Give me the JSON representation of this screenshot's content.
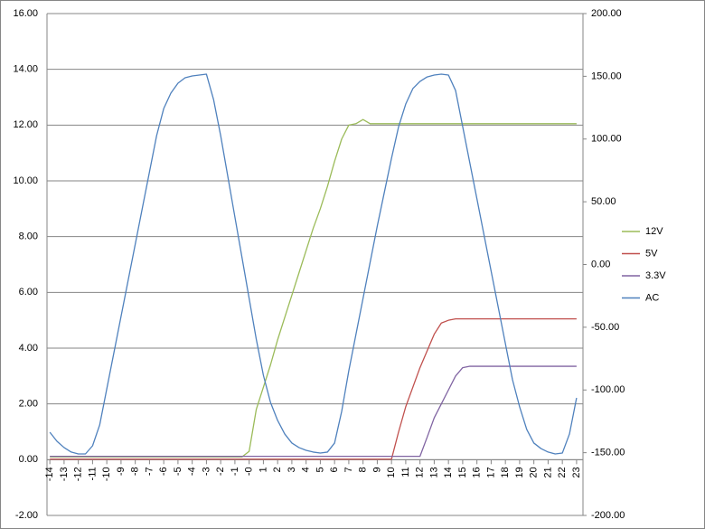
{
  "chart_data": {
    "type": "line",
    "x": [
      -14,
      -13.5,
      -13,
      -12.5,
      -12,
      -11.5,
      -11,
      -10.5,
      -10,
      -9.5,
      -9,
      -8.5,
      -8,
      -7.5,
      -7,
      -6.5,
      -6,
      -5.5,
      -5,
      -4.5,
      -4,
      -3.5,
      -3,
      -2.5,
      -2,
      -1.5,
      -1,
      -0.5,
      0,
      0.5,
      1,
      1.5,
      2,
      2.5,
      3,
      3.5,
      4,
      4.5,
      5,
      5.5,
      6,
      6.5,
      7,
      7.5,
      8,
      8.5,
      9,
      9.5,
      10,
      10.5,
      11,
      11.5,
      12,
      12.5,
      13,
      13.5,
      14,
      14.5,
      15,
      15.5,
      16,
      16.5,
      17,
      17.5,
      18,
      18.5,
      19,
      19.5,
      20,
      20.5,
      21,
      21.5,
      22,
      22.5,
      23
    ],
    "series": [
      {
        "name": "12V",
        "color": "#9bbb59",
        "values": [
          0.1,
          0.1,
          0.1,
          0.1,
          0.1,
          0.1,
          0.1,
          0.1,
          0.1,
          0.1,
          0.1,
          0.1,
          0.1,
          0.1,
          0.1,
          0.1,
          0.1,
          0.1,
          0.1,
          0.1,
          0.1,
          0.1,
          0.1,
          0.1,
          0.1,
          0.1,
          0.1,
          0.1,
          0.3,
          1.8,
          2.6,
          3.4,
          4.3,
          5.1,
          5.9,
          6.7,
          7.5,
          8.3,
          9.0,
          9.8,
          10.7,
          11.5,
          12.0,
          12.05,
          12.2,
          12.05,
          12.05,
          12.05,
          12.05,
          12.05,
          12.05,
          12.05,
          12.05,
          12.05,
          12.05,
          12.05,
          12.05,
          12.05,
          12.05,
          12.05,
          12.05,
          12.05,
          12.05,
          12.05,
          12.05,
          12.05,
          12.05,
          12.05,
          12.05,
          12.05,
          12.05,
          12.05,
          12.05,
          12.05,
          12.05
        ]
      },
      {
        "name": "5V",
        "color": "#c0504d",
        "values": [
          0.02,
          0.02,
          0.02,
          0.02,
          0.02,
          0.02,
          0.02,
          0.02,
          0.02,
          0.02,
          0.02,
          0.02,
          0.02,
          0.02,
          0.02,
          0.02,
          0.02,
          0.02,
          0.02,
          0.02,
          0.02,
          0.02,
          0.02,
          0.02,
          0.02,
          0.02,
          0.02,
          0.02,
          0.02,
          0.02,
          0.02,
          0.02,
          0.02,
          0.02,
          0.02,
          0.02,
          0.02,
          0.02,
          0.02,
          0.02,
          0.02,
          0.02,
          0.02,
          0.02,
          0.02,
          0.02,
          0.02,
          0.02,
          0.02,
          1.0,
          1.9,
          2.6,
          3.3,
          3.9,
          4.5,
          4.9,
          5.0,
          5.05,
          5.05,
          5.05,
          5.05,
          5.05,
          5.05,
          5.05,
          5.05,
          5.05,
          5.05,
          5.05,
          5.05,
          5.05,
          5.05,
          5.05,
          5.05,
          5.05,
          5.05
        ]
      },
      {
        "name": "3.3V",
        "color": "#8064a2",
        "values": [
          0.12,
          0.12,
          0.12,
          0.12,
          0.12,
          0.12,
          0.12,
          0.12,
          0.12,
          0.12,
          0.12,
          0.12,
          0.12,
          0.12,
          0.12,
          0.12,
          0.12,
          0.12,
          0.12,
          0.12,
          0.12,
          0.12,
          0.12,
          0.12,
          0.12,
          0.12,
          0.12,
          0.12,
          0.12,
          0.12,
          0.12,
          0.12,
          0.12,
          0.12,
          0.12,
          0.12,
          0.12,
          0.12,
          0.12,
          0.12,
          0.12,
          0.12,
          0.12,
          0.12,
          0.12,
          0.12,
          0.12,
          0.12,
          0.12,
          0.12,
          0.12,
          0.12,
          0.12,
          0.8,
          1.5,
          2.0,
          2.5,
          3.0,
          3.3,
          3.35,
          3.35,
          3.35,
          3.35,
          3.35,
          3.35,
          3.35,
          3.35,
          3.35,
          3.35,
          3.35,
          3.35,
          3.35,
          3.35,
          3.35,
          3.35
        ]
      },
      {
        "name": "AC",
        "color": "#4f81bd",
        "axis": "y2",
        "values": [
          -133.7,
          -140.9,
          -145.9,
          -149.5,
          -151,
          -151,
          -144.5,
          -127.9,
          -99.1,
          -70.3,
          -41.4,
          -12.6,
          16.2,
          45.1,
          73.9,
          102.7,
          124.3,
          136.6,
          144.5,
          148.8,
          150.3,
          151,
          151.7,
          131.5,
          102.7,
          70.3,
          37.8,
          5.4,
          -27,
          -59.5,
          -88.3,
          -109.9,
          -124.3,
          -135.1,
          -142.3,
          -145.9,
          -148.1,
          -149.5,
          -150.3,
          -149.5,
          -142.3,
          -117.1,
          -84.7,
          -55.9,
          -27,
          1.8,
          30.6,
          57.7,
          84.7,
          109.9,
          127.9,
          140.2,
          145.9,
          149.5,
          151,
          151.7,
          151,
          138.7,
          109.9,
          81.1,
          52.3,
          23.4,
          -5.4,
          -34.2,
          -63.1,
          -91.9,
          -113.5,
          -131.5,
          -142.3,
          -146.7,
          -149.5,
          -151,
          -150.3,
          -135.1,
          -106.3
        ]
      }
    ],
    "xlim": [
      -14.2,
      23.45
    ],
    "xticks": [
      -14,
      -13,
      -12,
      -11,
      -10,
      -9,
      -8,
      -7,
      -6,
      -5,
      -4,
      -3,
      -2,
      -1,
      {
        "value": 0,
        "label": "-0"
      },
      1,
      2,
      3,
      4,
      5,
      6,
      7,
      8,
      9,
      10,
      11,
      12,
      13,
      14,
      15,
      16,
      17,
      18,
      19,
      20,
      21,
      22,
      23
    ],
    "ylim": [
      -2,
      16
    ],
    "yticks": [
      {
        "value": -2,
        "label": "-2.00"
      },
      {
        "value": 0,
        "label": "0.00"
      },
      {
        "value": 2,
        "label": "2.00"
      },
      {
        "value": 4,
        "label": "4.00"
      },
      {
        "value": 6,
        "label": "6.00"
      },
      {
        "value": 8,
        "label": "8.00"
      },
      {
        "value": 10,
        "label": "10.00"
      },
      {
        "value": 12,
        "label": "12.00"
      },
      {
        "value": 14,
        "label": "14.00"
      },
      {
        "value": 16,
        "label": "16.00"
      }
    ],
    "y2lim": [
      -200,
      200
    ],
    "y2ticks": [
      {
        "value": -200,
        "label": "-200.00"
      },
      {
        "value": -150,
        "label": "-150.00"
      },
      {
        "value": -100,
        "label": "-100.00"
      },
      {
        "value": -50,
        "label": "-50.00"
      },
      {
        "value": 0,
        "label": "0.00"
      },
      {
        "value": 50,
        "label": "50.00"
      },
      {
        "value": 100,
        "label": "100.00"
      },
      {
        "value": 150,
        "label": "150.00"
      },
      {
        "value": 200,
        "label": "200.00"
      }
    ],
    "grid": true,
    "legend": "right"
  }
}
